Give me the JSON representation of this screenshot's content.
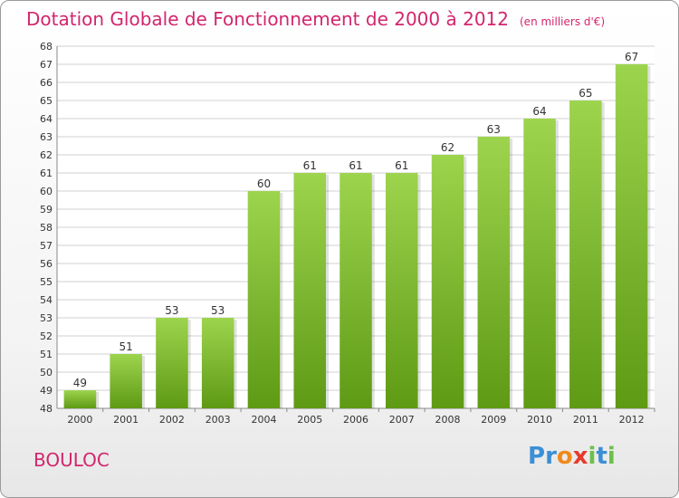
{
  "header": {
    "title": "Dotation Globale de Fonctionnement de 2000 à 2012",
    "unit": "(en milliers d'€)"
  },
  "footer": {
    "place": "BOULOC",
    "logo_letters": [
      {
        "ch": "P",
        "color": "#3a8fd6"
      },
      {
        "ch": "r",
        "color": "#3a8fd6"
      },
      {
        "ch": "o",
        "color": "#f08a1c"
      },
      {
        "ch": "x",
        "color": "#e63a2c"
      },
      {
        "ch": "i",
        "color": "#6cc04a"
      },
      {
        "ch": "t",
        "color": "#3a8fd6"
      },
      {
        "ch": "i",
        "color": "#6cc04a"
      }
    ]
  },
  "colors": {
    "bar_top": "#9dd44e",
    "bar_bottom": "#5e9a14",
    "title": "#d2266d",
    "grid": "#d0d0d0",
    "axis": "#888888"
  },
  "chart_data": {
    "type": "bar",
    "title": "Dotation Globale de Fonctionnement de 2000 à 2012",
    "xlabel": "",
    "ylabel": "",
    "categories": [
      "2000",
      "2001",
      "2002",
      "2003",
      "2004",
      "2005",
      "2006",
      "2007",
      "2008",
      "2009",
      "2010",
      "2011",
      "2012"
    ],
    "values": [
      49,
      51,
      53,
      53,
      60,
      61,
      61,
      61,
      62,
      63,
      64,
      65,
      67
    ],
    "ylim": [
      48,
      68
    ],
    "ytick_step": 1,
    "grid": true,
    "data_labels": true
  }
}
